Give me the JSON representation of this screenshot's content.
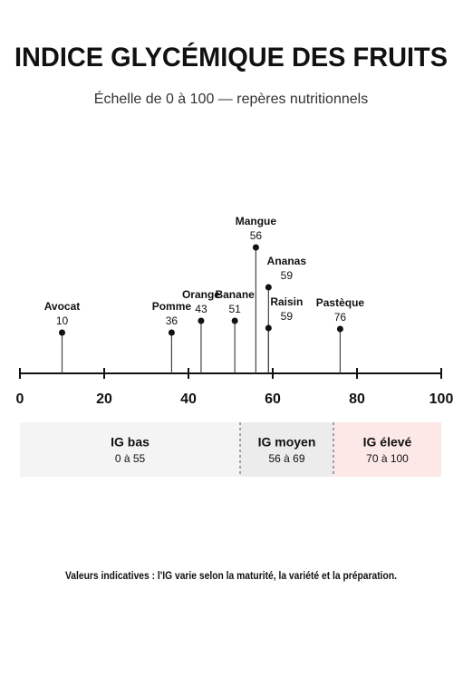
{
  "chart_data": {
    "type": "dot",
    "title": "INDICE GLYCÉMIQUE DES FRUITS",
    "subtitle": "Échelle de 0 à 100 — repères nutritionnels",
    "categories": [
      "Avocat",
      "Pomme",
      "Orange",
      "Banane",
      "Mangue",
      "Ananas",
      "Raisin",
      "Pastèque"
    ],
    "values": [
      10,
      36,
      43,
      51,
      56,
      59,
      59,
      76
    ],
    "color": "#111111",
    "xlim": [
      0,
      100
    ],
    "xticks": [
      0,
      20,
      40,
      60,
      80,
      100
    ],
    "zones": [
      {
        "name": "IG bas",
        "range": "0 à 55",
        "color": "#f4f4f4"
      },
      {
        "name": "IG moyen",
        "range": "56 à 69",
        "color": "#ececec"
      },
      {
        "name": "IG élevé",
        "range": "70 à 100",
        "color": "#fde8e8"
      }
    ],
    "note": "Valeurs indicatives : l'IG varie selon la maturité, la variété et la préparation."
  }
}
